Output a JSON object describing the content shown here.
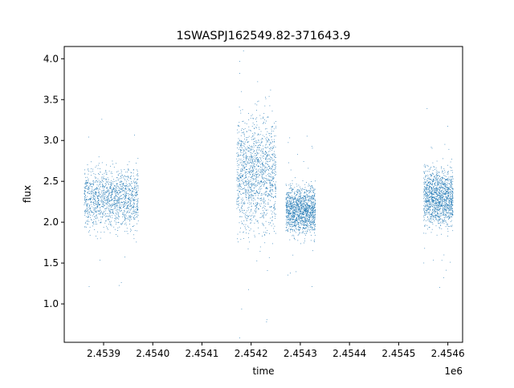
{
  "chart_data": {
    "type": "scatter",
    "title": "1SWASPJ162549.82-371643.9",
    "xlabel": "time",
    "ylabel": "flux",
    "x_offset_label": "1e6",
    "xlim": [
      2.45382,
      2.45463
    ],
    "ylim": [
      0.53,
      4.15
    ],
    "x_ticks": [
      2.4539,
      2.454,
      2.4541,
      2.4542,
      2.4543,
      2.4544,
      2.4545,
      2.4546
    ],
    "x_tick_labels": [
      "2.4539",
      "2.4540",
      "2.4541",
      "2.4542",
      "2.4543",
      "2.4544",
      "2.4545",
      "2.4546"
    ],
    "y_ticks": [
      1.0,
      1.5,
      2.0,
      2.5,
      3.0,
      3.5,
      4.0
    ],
    "y_tick_labels": [
      "1.0",
      "1.5",
      "2.0",
      "2.5",
      "3.0",
      "3.5",
      "4.0"
    ],
    "grid": false,
    "marker_color": "#1f77b4",
    "segments": [
      {
        "x_range": [
          2.45386,
          2.45397
        ],
        "flux_range": [
          1.7,
          2.75
        ],
        "median_flux": 2.3
      },
      {
        "x_range": [
          2.45417,
          2.45425
        ],
        "flux_range": [
          1.6,
          3.6
        ],
        "median_flux": 2.6
      },
      {
        "x_range": [
          2.45427,
          2.45433
        ],
        "flux_range": [
          1.75,
          2.6
        ],
        "median_flux": 2.15
      },
      {
        "x_range": [
          2.45455,
          2.45461
        ],
        "flux_range": [
          1.75,
          2.75
        ],
        "median_flux": 2.3
      }
    ]
  }
}
